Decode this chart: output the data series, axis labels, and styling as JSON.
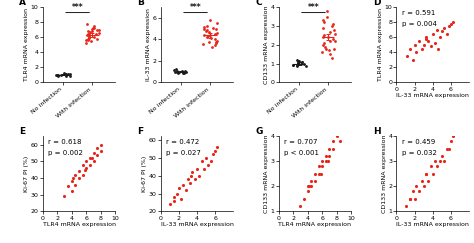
{
  "panel_A": {
    "label": "A",
    "no_inf": [
      1.0,
      0.9,
      1.1,
      1.2,
      0.8,
      1.0,
      0.95,
      1.05,
      1.15,
      0.85,
      1.0,
      1.1
    ],
    "with_inf": [
      7.0,
      6.5,
      6.8,
      5.8,
      6.2,
      7.2,
      5.5,
      6.0,
      7.5,
      6.3,
      5.9,
      6.7,
      7.1,
      6.4,
      5.7,
      6.9,
      7.3,
      5.6,
      6.1,
      7.8,
      5.3,
      6.6,
      7.0,
      5.8,
      6.4
    ],
    "mean_no": 1.0,
    "sem_no": 0.08,
    "mean_with": 6.3,
    "sem_with": 0.22,
    "ylabel": "TLR4 mRNA expression",
    "ylim": [
      0,
      10
    ],
    "yticks": [
      0,
      2,
      4,
      6,
      8,
      10
    ],
    "sig": "***"
  },
  "panel_B": {
    "label": "B",
    "no_inf": [
      1.0,
      0.9,
      1.2,
      1.1,
      0.85,
      1.0,
      0.95,
      1.05,
      1.15,
      0.88,
      1.0,
      1.1,
      0.92
    ],
    "with_inf": [
      5.0,
      4.5,
      4.8,
      3.8,
      4.2,
      5.2,
      3.5,
      4.0,
      5.5,
      4.3,
      3.9,
      4.7,
      5.1,
      4.4,
      3.7,
      4.9,
      5.3,
      3.6,
      4.1,
      5.8,
      3.3,
      4.6,
      5.0,
      3.8,
      4.4
    ],
    "mean_no": 1.0,
    "sem_no": 0.08,
    "mean_with": 4.4,
    "sem_with": 0.22,
    "ylabel": "IL-33 mRNA expression",
    "ylim": [
      0,
      7
    ],
    "yticks": [
      0,
      2,
      4,
      6
    ],
    "sig": "***"
  },
  "panel_C": {
    "label": "C",
    "no_inf": [
      1.0,
      0.9,
      1.1,
      1.2,
      0.85,
      1.0,
      0.95,
      1.05,
      1.15,
      1.08,
      0.88,
      1.02,
      1.12,
      0.92
    ],
    "with_inf": [
      2.5,
      2.2,
      2.8,
      1.8,
      2.2,
      3.2,
      1.5,
      2.0,
      3.5,
      2.3,
      1.9,
      2.7,
      3.1,
      2.4,
      1.7,
      2.9,
      3.3,
      1.6,
      2.1,
      3.8,
      1.3,
      2.6,
      3.0,
      1.8,
      2.4
    ],
    "mean_no": 1.0,
    "sem_no": 0.06,
    "mean_with": 2.4,
    "sem_with": 0.15,
    "ylabel": "CD133 mRNA expression",
    "ylim": [
      0,
      4
    ],
    "yticks": [
      0,
      1,
      2,
      3,
      4
    ],
    "sig": "***"
  },
  "panel_D": {
    "label": "D",
    "x": [
      1.2,
      1.5,
      2.0,
      2.2,
      2.5,
      2.8,
      3.0,
      3.2,
      3.5,
      3.8,
      4.0,
      4.2,
      4.5,
      4.8,
      5.0,
      5.2,
      5.5,
      5.8,
      6.0,
      6.2,
      1.8,
      3.3,
      4.6
    ],
    "y": [
      3.5,
      4.5,
      5.0,
      4.0,
      5.5,
      4.5,
      5.0,
      6.0,
      5.5,
      4.8,
      6.5,
      5.2,
      7.0,
      6.0,
      6.8,
      7.2,
      6.5,
      7.5,
      7.8,
      8.0,
      3.0,
      5.8,
      4.5
    ],
    "r": "r = 0.591",
    "p": "p = 0.004",
    "xlabel": "IL-33 mRNA expression",
    "ylabel": "TLR4 mRNA expression",
    "xlim": [
      0,
      8
    ],
    "ylim": [
      0,
      10
    ],
    "xticks": [
      0,
      2,
      4,
      6
    ],
    "yticks": [
      0,
      2,
      4,
      6,
      8,
      10
    ]
  },
  "panel_E": {
    "label": "E",
    "x": [
      3.0,
      3.5,
      4.0,
      4.0,
      4.5,
      4.5,
      5.0,
      5.0,
      5.5,
      5.5,
      6.0,
      6.0,
      6.5,
      6.5,
      7.0,
      7.0,
      7.5,
      7.5,
      8.0,
      8.0,
      4.2,
      5.8,
      6.8
    ],
    "y": [
      29,
      35,
      38,
      32,
      42,
      36,
      44,
      40,
      48,
      42,
      50,
      46,
      52,
      48,
      55,
      50,
      58,
      54,
      60,
      56,
      40,
      45,
      52
    ],
    "r": "r = 0.618",
    "p": "p = 0.002",
    "xlabel": "TLR4 mRNA expression",
    "ylabel": "Ki-67 PI (%)",
    "xlim": [
      0,
      10
    ],
    "ylim": [
      20,
      65
    ],
    "xticks": [
      0,
      2,
      4,
      6,
      8,
      10
    ],
    "yticks": [
      20,
      30,
      40,
      50,
      60
    ]
  },
  "panel_F": {
    "label": "F",
    "x": [
      1.0,
      1.5,
      1.8,
      2.0,
      2.2,
      2.5,
      2.8,
      3.0,
      3.2,
      3.5,
      3.8,
      4.0,
      4.2,
      4.5,
      4.8,
      5.0,
      5.5,
      5.8,
      6.0,
      6.2,
      1.5,
      3.3,
      5.2
    ],
    "y": [
      24,
      28,
      30,
      33,
      27,
      35,
      32,
      38,
      36,
      42,
      38,
      44,
      40,
      48,
      44,
      50,
      48,
      52,
      54,
      56,
      26,
      40,
      46
    ],
    "r": "r = 0.472",
    "p": "p = 0.027",
    "xlabel": "IL-33 mRNA expression",
    "ylabel": "Ki-67 PI (%)",
    "xlim": [
      0,
      8
    ],
    "ylim": [
      20,
      62
    ],
    "xticks": [
      0,
      2,
      4,
      6
    ],
    "yticks": [
      20,
      30,
      40,
      50,
      60
    ]
  },
  "panel_G": {
    "label": "G",
    "x": [
      3.0,
      3.5,
      4.0,
      4.0,
      4.5,
      4.5,
      5.0,
      5.0,
      5.5,
      5.5,
      6.0,
      6.0,
      6.5,
      6.5,
      7.0,
      7.0,
      7.5,
      7.5,
      8.0,
      8.5,
      4.2,
      5.8,
      6.8
    ],
    "y": [
      1.2,
      1.5,
      2.0,
      1.8,
      2.2,
      2.0,
      2.5,
      2.2,
      2.8,
      2.5,
      3.0,
      2.8,
      3.2,
      3.0,
      3.5,
      3.2,
      3.5,
      3.8,
      4.0,
      3.8,
      2.0,
      2.5,
      3.0
    ],
    "r": "r = 0.707",
    "p": "p < 0.001",
    "xlabel": "TLR4 mRNA expression",
    "ylabel": "CD133 mRNA expression",
    "xlim": [
      0,
      10
    ],
    "ylim": [
      1,
      4
    ],
    "xticks": [
      0,
      2,
      4,
      6,
      8,
      10
    ],
    "yticks": [
      1,
      2,
      3,
      4
    ]
  },
  "panel_H": {
    "label": "H",
    "x": [
      1.0,
      1.5,
      1.8,
      2.0,
      2.2,
      2.5,
      2.8,
      3.0,
      3.2,
      3.5,
      3.8,
      4.0,
      4.2,
      4.5,
      4.8,
      5.0,
      5.5,
      5.8,
      6.0,
      6.2,
      1.5,
      3.3,
      5.2
    ],
    "y": [
      1.2,
      1.5,
      1.8,
      1.5,
      2.0,
      1.8,
      2.2,
      2.0,
      2.5,
      2.2,
      2.8,
      2.5,
      3.0,
      2.8,
      3.0,
      3.2,
      3.5,
      3.5,
      3.8,
      4.0,
      1.5,
      2.5,
      3.0
    ],
    "r": "r = 0.459",
    "p": "p = 0.032",
    "xlabel": "IL-33 mRNA expression",
    "ylabel": "CD133 mRNA expression",
    "xlim": [
      0,
      8
    ],
    "ylim": [
      1,
      4
    ],
    "xticks": [
      0,
      2,
      4,
      6
    ],
    "yticks": [
      1,
      2,
      3,
      4
    ]
  },
  "dot_color_black": "#1a1a1a",
  "dot_color_red": "#e8251a",
  "font_size_ylabel": 4.5,
  "font_size_xlabel": 4.5,
  "font_size_tick": 4.5,
  "font_size_panel": 6.5,
  "font_size_annot": 5.0,
  "font_size_sig": 5.5,
  "dot_size_strip": 4,
  "dot_size_scatter": 5
}
